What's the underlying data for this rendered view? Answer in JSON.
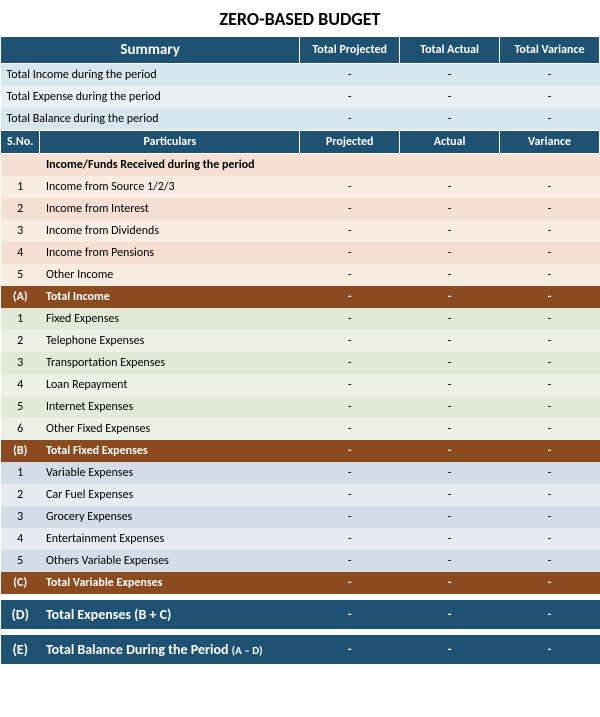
{
  "title": "ZERO-BASED BUDGET",
  "colors": {
    "navy": "#1f5173",
    "brown": "#8c4a1f",
    "lightBlue1": "#d7e6ee",
    "lightBlue2": "#e9f0f4",
    "peach1": "#f5e0d3",
    "peach2": "#f9ece3",
    "green1": "#e1ead9",
    "green2": "#ecf1e6",
    "blue1": "#d3dde7",
    "blue2": "#e5ebf1",
    "white": "#ffffff"
  },
  "summaryHeader": {
    "label": "Summary",
    "cols": [
      "Total Projected",
      "Total Actual",
      "Total Variance"
    ]
  },
  "summaryRows": [
    {
      "label": "Total Income during the period",
      "projected": "-",
      "actual": "-",
      "variance": "-"
    },
    {
      "label": "Total Expense during the period",
      "projected": "-",
      "actual": "-",
      "variance": "-"
    },
    {
      "label": "Total Balance during the period",
      "projected": "-",
      "actual": "-",
      "variance": "-"
    }
  ],
  "detailHeader": {
    "sno": "S.No.",
    "particulars": "Particulars",
    "cols": [
      "Projected",
      "Actual",
      "Variance"
    ]
  },
  "incomeSection": {
    "header": "Income/Funds Received during the period",
    "rows": [
      {
        "sno": "1",
        "label": "Income from Source 1/2/3",
        "projected": "-",
        "actual": "-",
        "variance": "-"
      },
      {
        "sno": "2",
        "label": "Income from Interest",
        "projected": "-",
        "actual": "-",
        "variance": "-"
      },
      {
        "sno": "3",
        "label": "Income from Dividends",
        "projected": "-",
        "actual": "-",
        "variance": "-"
      },
      {
        "sno": "4",
        "label": "Income from Pensions",
        "projected": "-",
        "actual": "-",
        "variance": "-"
      },
      {
        "sno": "5",
        "label": "Other Income",
        "projected": "-",
        "actual": "-",
        "variance": "-"
      }
    ],
    "total": {
      "id": "(A)",
      "label": "Total Income",
      "projected": "-",
      "actual": "-",
      "variance": "-"
    }
  },
  "fixedSection": {
    "rows": [
      {
        "sno": "1",
        "label": "Fixed Expenses",
        "projected": "-",
        "actual": "-",
        "variance": "-"
      },
      {
        "sno": "2",
        "label": "Telephone Expenses",
        "projected": "-",
        "actual": "-",
        "variance": "-"
      },
      {
        "sno": "3",
        "label": "Transportation Expenses",
        "projected": "-",
        "actual": "-",
        "variance": "-"
      },
      {
        "sno": "4",
        "label": "Loan Repayment",
        "projected": "-",
        "actual": "-",
        "variance": "-"
      },
      {
        "sno": "5",
        "label": "Internet Expenses",
        "projected": "-",
        "actual": "-",
        "variance": "-"
      },
      {
        "sno": "6",
        "label": "Other Fixed Expenses",
        "projected": "-",
        "actual": "-",
        "variance": "-"
      }
    ],
    "total": {
      "id": "(B)",
      "label": "Total Fixed Expenses",
      "projected": "-",
      "actual": "-",
      "variance": "-"
    }
  },
  "variableSection": {
    "rows": [
      {
        "sno": "1",
        "label": "Variable Expenses",
        "projected": "-",
        "actual": "-",
        "variance": "-"
      },
      {
        "sno": "2",
        "label": "Car Fuel Expenses",
        "projected": "-",
        "actual": "-",
        "variance": "-"
      },
      {
        "sno": "3",
        "label": "Grocery Expenses",
        "projected": "-",
        "actual": "-",
        "variance": "-"
      },
      {
        "sno": "4",
        "label": "Entertainment Expenses",
        "projected": "-",
        "actual": "-",
        "variance": "-"
      },
      {
        "sno": "5",
        "label": "Others Variable Expenses",
        "projected": "-",
        "actual": "-",
        "variance": "-"
      }
    ],
    "total": {
      "id": "(C)",
      "label": "Total Variable Expenses",
      "projected": "-",
      "actual": "-",
      "variance": "-"
    }
  },
  "totalExpenses": {
    "id": "(D)",
    "label": "Total Expenses (B + C)",
    "projected": "-",
    "actual": "-",
    "variance": "-"
  },
  "totalBalance": {
    "id": "(E)",
    "label": "Total Balance During the Period",
    "sub": "(A – D)",
    "projected": "-",
    "actual": "-",
    "variance": "-"
  }
}
